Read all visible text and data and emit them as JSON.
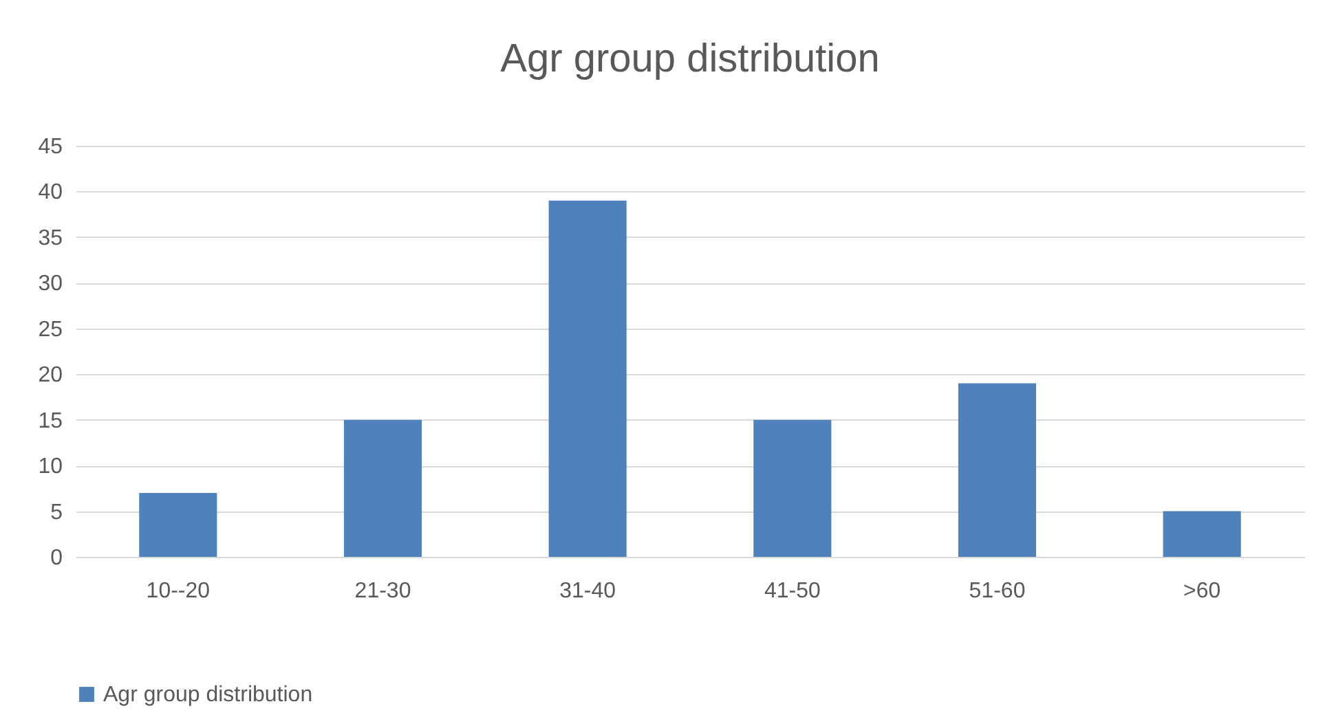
{
  "chart_data": {
    "type": "bar",
    "title": "Agr group distribution",
    "categories": [
      "10--20",
      "21-30",
      "31-40",
      "41-50",
      "51-60",
      ">60"
    ],
    "series": [
      {
        "name": "Agr group distribution",
        "color": "#4f81bd",
        "values": [
          7,
          15,
          39,
          15,
          19,
          5
        ]
      }
    ],
    "ylim": [
      0,
      45
    ],
    "yticks": [
      0,
      5,
      10,
      15,
      20,
      25,
      30,
      35,
      40,
      45
    ],
    "grid": "y",
    "legend": "bottom"
  }
}
